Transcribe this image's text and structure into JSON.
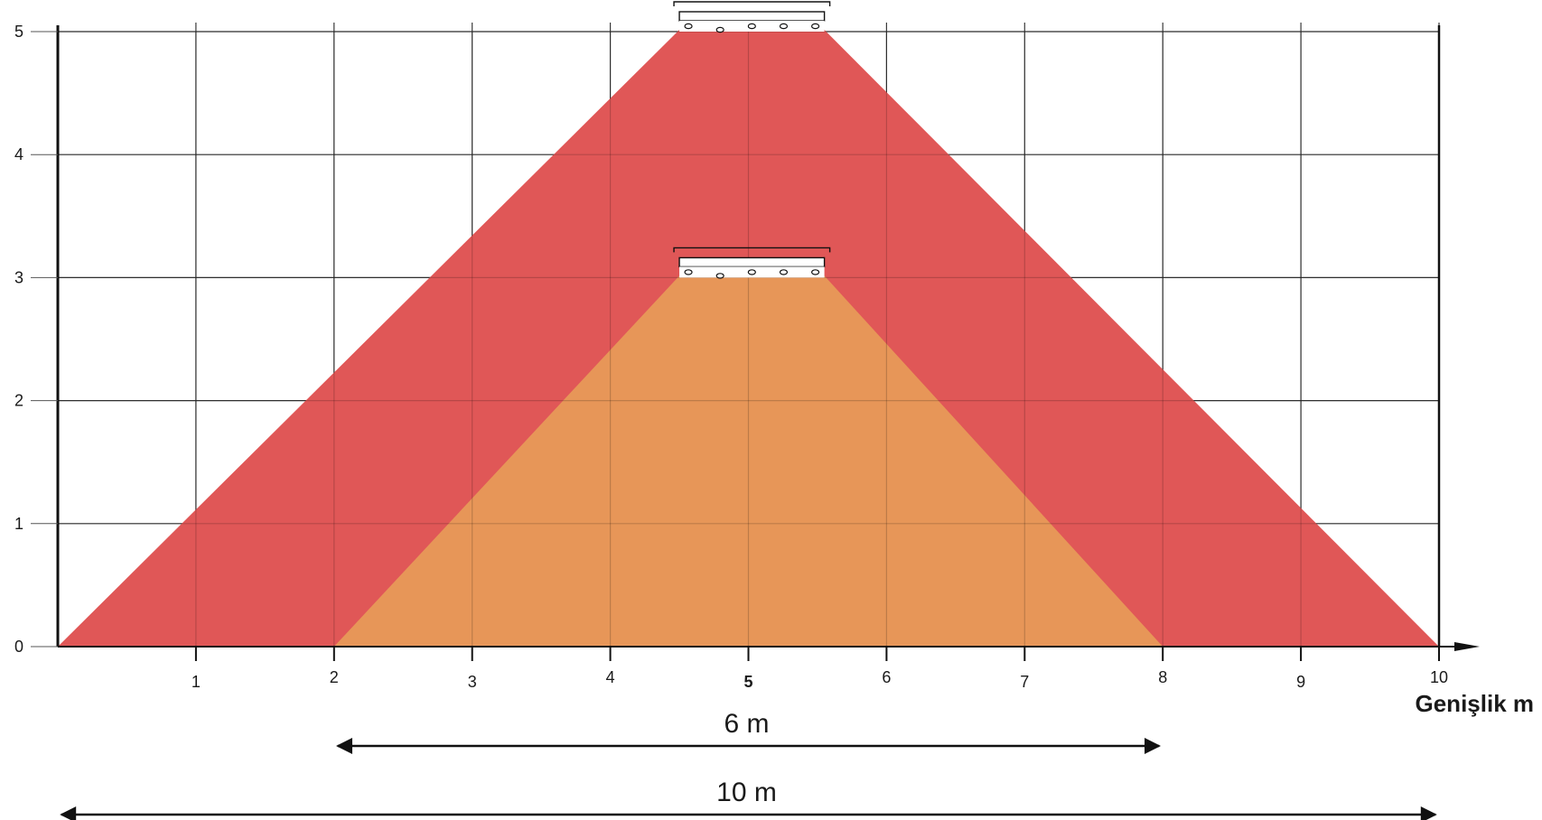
{
  "chart_data": {
    "type": "diagram",
    "xlabel": "Genişlik m",
    "x_ticks": [
      "1",
      "2",
      "3",
      "4",
      "5",
      "6",
      "7",
      "8",
      "9",
      "10"
    ],
    "y_ticks": [
      "0",
      "1",
      "2",
      "3",
      "4",
      "5"
    ],
    "highlighted_x_tick": "5",
    "xlim": [
      0,
      10
    ],
    "ylim": [
      0,
      5
    ],
    "grid": true,
    "zones": [
      {
        "color": "#e05757",
        "sensor_height": 5,
        "top_x": [
          4.5,
          5.55
        ],
        "bottom_x": [
          0,
          10
        ],
        "dimension_label": "10 m",
        "dimension_span": [
          0,
          10
        ]
      },
      {
        "color": "#e79658",
        "sensor_height": 3,
        "top_x": [
          4.5,
          5.55
        ],
        "bottom_x": [
          2,
          8
        ],
        "dimension_label": "6 m",
        "dimension_span": [
          2,
          8
        ]
      }
    ]
  }
}
